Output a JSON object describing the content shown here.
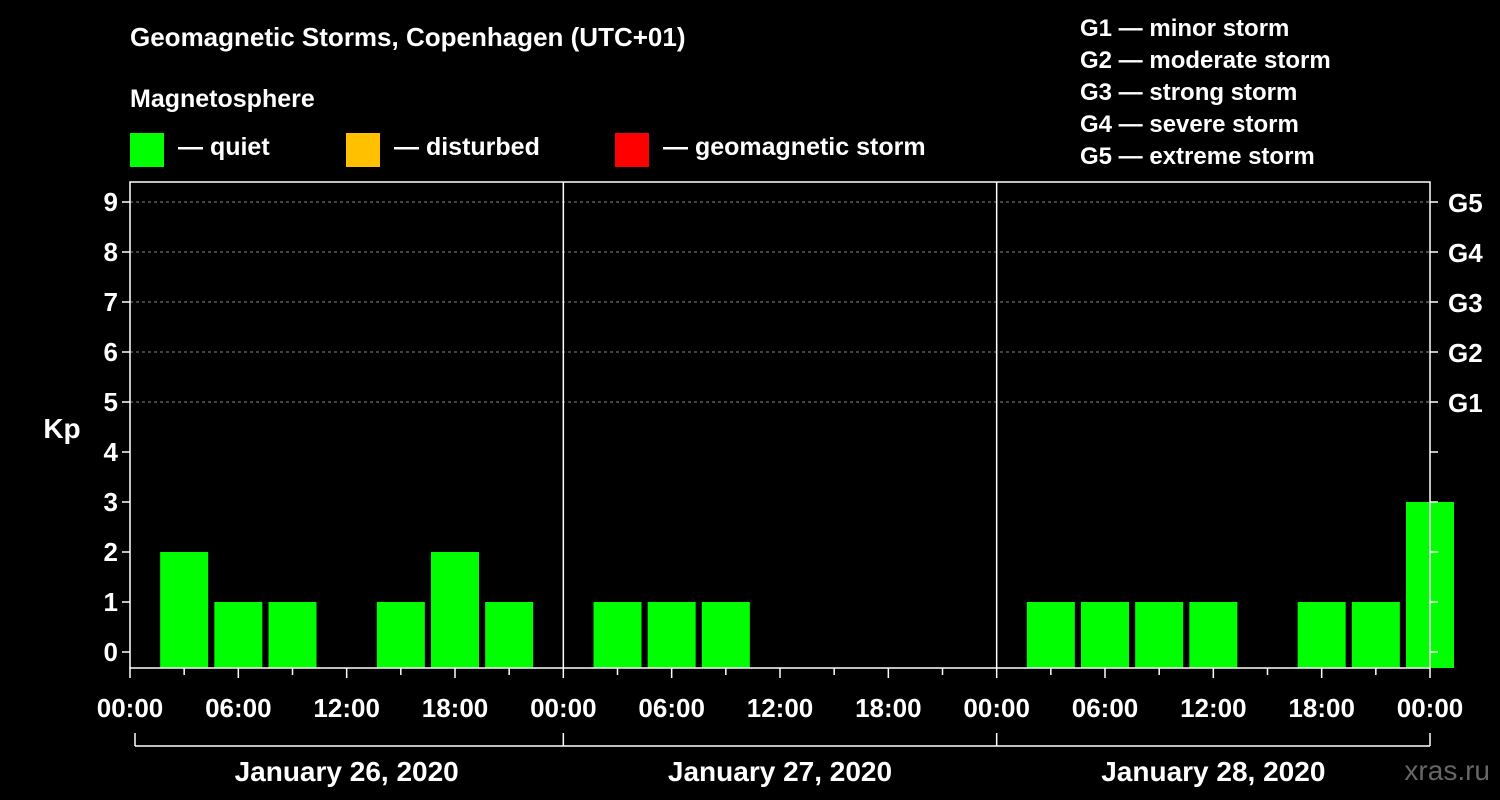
{
  "title": "Geomagnetic Storms, Copenhagen (UTC+01)",
  "magnetosphere": {
    "title": "Magnetosphere",
    "legend": [
      {
        "label": "— quiet",
        "color": "#00ff00"
      },
      {
        "label": "— disturbed",
        "color": "#ffc000"
      },
      {
        "label": "— geomagnetic storm",
        "color": "#ff0000"
      }
    ]
  },
  "storm_scale": [
    "G1 — minor storm",
    "G2 — moderate storm",
    "G3 — strong storm",
    "G4 — severe storm",
    "G5 — extreme storm"
  ],
  "watermark": "xras.ru",
  "chart_data": {
    "type": "bar",
    "title": "Geomagnetic Storms, Copenhagen (UTC+01)",
    "ylabel": "Kp",
    "ylim": [
      0,
      9
    ],
    "y_ticks": [
      "0",
      "1",
      "2",
      "3",
      "4",
      "5",
      "6",
      "7",
      "8",
      "9"
    ],
    "right_axis": [
      {
        "kp": 5,
        "label": "G1"
      },
      {
        "kp": 6,
        "label": "G2"
      },
      {
        "kp": 7,
        "label": "G3"
      },
      {
        "kp": 8,
        "label": "G4"
      },
      {
        "kp": 9,
        "label": "G5"
      }
    ],
    "grid_kp": [
      5,
      6,
      7,
      8,
      9
    ],
    "x_tick_labels": [
      "00:00",
      "06:00",
      "12:00",
      "18:00",
      "00:00",
      "06:00",
      "12:00",
      "18:00",
      "00:00",
      "06:00",
      "12:00",
      "18:00",
      "00:00"
    ],
    "days": [
      "January 26, 2020",
      "January 27, 2020",
      "January 28, 2020"
    ],
    "interval_hours": 3,
    "values": [
      null,
      2,
      1,
      1,
      null,
      1,
      2,
      1,
      null,
      1,
      1,
      1,
      null,
      null,
      null,
      null,
      null,
      1,
      1,
      1,
      1,
      null,
      1,
      1,
      3
    ],
    "bar_color": "#00ff00"
  }
}
